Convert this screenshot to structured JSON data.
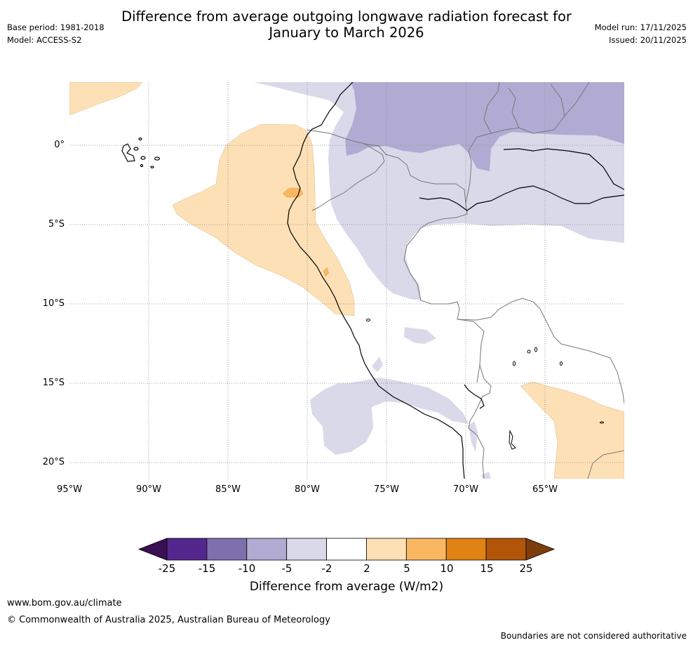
{
  "title_line1": "Difference from average outgoing longwave radiation forecast for",
  "title_line2": "January to March 2026",
  "base_period": "Base period: 1981-2018",
  "model": "Model: ACCESS-S2",
  "model_run": "Model run: 17/11/2025",
  "issued": "Issued: 20/11/2025",
  "lat_labels": [
    "0°",
    "5°S",
    "10°S",
    "15°S",
    "20°S"
  ],
  "lon_labels": [
    "95°W",
    "90°W",
    "85°W",
    "80°W",
    "75°W",
    "70°W",
    "65°W"
  ],
  "colorbar": {
    "ticks": [
      "-25",
      "-15",
      "-10",
      "-5",
      "-2",
      "2",
      "5",
      "10",
      "15",
      "25"
    ],
    "colors": [
      "#3b0f54",
      "#54278f",
      "#7f6fad",
      "#b1abd3",
      "#d9d9ea",
      "#ffffff",
      "#fde0b5",
      "#f9b762",
      "#e08314",
      "#b25509",
      "#7e3d0c"
    ],
    "title": "Difference from average (W/m2)"
  },
  "footer_url": "www.bom.gov.au/climate",
  "copyright": "© Commonwealth of Australia 2025, Australian Bureau of Meteorology",
  "disclaimer": "Boundaries are not considered authoritative"
}
